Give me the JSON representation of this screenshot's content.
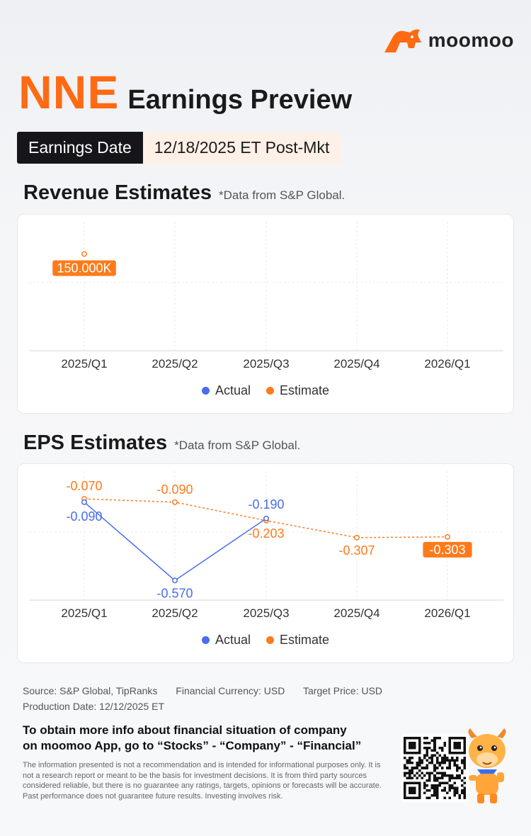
{
  "brand": {
    "name": "moomoo",
    "color": "#ff6a13"
  },
  "header": {
    "ticker": "NNE",
    "title": "Earnings Preview"
  },
  "earnings_date": {
    "label": "Earnings Date",
    "value": "12/18/2025 ET Post-Mkt"
  },
  "revenue_section": {
    "title": "Revenue Estimates",
    "note": "*Data from S&P Global."
  },
  "eps_section": {
    "title": "EPS Estimates",
    "note": "*Data from S&P Global."
  },
  "legend": {
    "actual": "Actual",
    "estimate": "Estimate"
  },
  "colors": {
    "actual": "#4a6cf0",
    "estimate": "#ff7a1a",
    "grid": "#e8e8ec"
  },
  "chart_data": [
    {
      "type": "line",
      "title": "Revenue Estimates",
      "categories": [
        "2025/Q1",
        "2025/Q2",
        "2025/Q3",
        "2025/Q4",
        "2026/Q1"
      ],
      "series": [
        {
          "name": "Actual",
          "values": [
            null,
            null,
            null,
            null,
            null
          ]
        },
        {
          "name": "Estimate",
          "values": [
            150000,
            null,
            null,
            null,
            null
          ]
        }
      ],
      "labels": {
        "estimate": [
          "150.000K",
          null,
          null,
          null,
          null
        ]
      },
      "highlight_estimate_index": 0,
      "ylim": [
        0,
        200000
      ],
      "grid": true,
      "legend_position": "bottom"
    },
    {
      "type": "line",
      "title": "EPS Estimates",
      "categories": [
        "2025/Q1",
        "2025/Q2",
        "2025/Q3",
        "2025/Q4",
        "2026/Q1"
      ],
      "series": [
        {
          "name": "Actual",
          "values": [
            -0.09,
            -0.57,
            -0.19,
            null,
            null
          ]
        },
        {
          "name": "Estimate",
          "values": [
            -0.07,
            -0.09,
            -0.203,
            -0.307,
            -0.303
          ]
        }
      ],
      "labels": {
        "actual": [
          "-0.090",
          "-0.570",
          "-0.190",
          null,
          null
        ],
        "estimate": [
          "-0.070",
          "-0.090",
          "-0.203",
          "-0.307",
          "-0.303"
        ]
      },
      "highlight_estimate_index": 4,
      "ylim": [
        -0.69,
        0.1
      ],
      "grid": true,
      "legend_position": "bottom"
    }
  ],
  "footer": {
    "source": "Source: S&P Global, TipRanks",
    "currency": "Financial Currency: USD",
    "target": "Target Price: USD",
    "production": "Production Date: 12/12/2025 ET",
    "cta_line1": "To obtain more info about financial situation of company",
    "cta_line2": "on moomoo App, go to “Stocks” - “Company” - “Financial”",
    "disclaimer": "The information presented is not a recommendation and is intended for informational purposes only. It is not a research report or meant to be the basis for investment decisions. It is from third party sources considered reliable, but there is no guarantee any ratings, targets, opinions or forecasts will be accurate. Past performance does not guarantee future results. Investing involves risk."
  }
}
